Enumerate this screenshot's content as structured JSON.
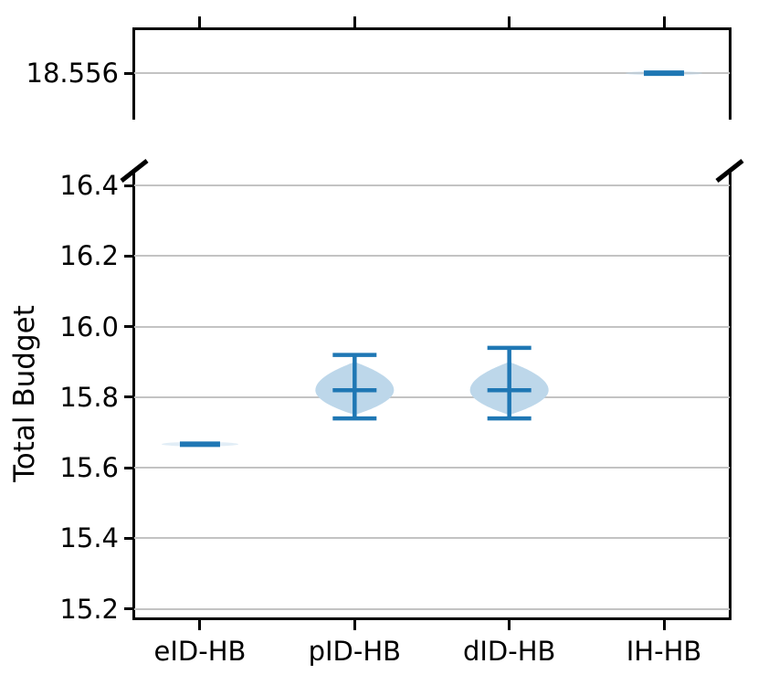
{
  "figure": {
    "background": "#ffffff",
    "axis_color": "#000000",
    "grid_color": "#c3c3c3",
    "accent_blue": "#1f77b4",
    "violin_fill": "#bdd7ea"
  },
  "chart_data": {
    "type": "violin",
    "title": "",
    "xlabel": "",
    "ylabel": "Total Budget",
    "broken_axis": true,
    "grid": true,
    "categories": [
      "eID-HB",
      "pID-HB",
      "dID-HB",
      "IH-HB"
    ],
    "xlim": [
      -0.425,
      3.425
    ],
    "top_panel": {
      "ylim": [
        18.427,
        18.6805
      ],
      "yticks": [
        18.556
      ],
      "ytick_labels": [
        "18.556"
      ],
      "series": [
        {
          "category": "IH-HB",
          "index": 3,
          "mean": 18.556,
          "min": 18.556,
          "max": 18.556,
          "flat": true
        }
      ]
    },
    "bottom_panel": {
      "ylim": [
        15.176,
        16.447
      ],
      "yticks": [
        16.4,
        16.2,
        16.0,
        15.8,
        15.6,
        15.4,
        15.2
      ],
      "ytick_labels": [
        "16.4",
        "16.2",
        "16.0",
        "15.8",
        "15.6",
        "15.4",
        "15.2"
      ],
      "series": [
        {
          "category": "eID-HB",
          "index": 0,
          "mean": 15.667,
          "min": 15.667,
          "max": 15.667,
          "flat": true
        },
        {
          "category": "pID-HB",
          "index": 1,
          "mean": 15.82,
          "min": 15.74,
          "max": 15.92,
          "body_min": 15.75,
          "body_max": 15.9
        },
        {
          "category": "dID-HB",
          "index": 2,
          "mean": 15.82,
          "min": 15.74,
          "max": 15.94,
          "body_min": 15.75,
          "body_max": 15.9
        }
      ]
    }
  }
}
